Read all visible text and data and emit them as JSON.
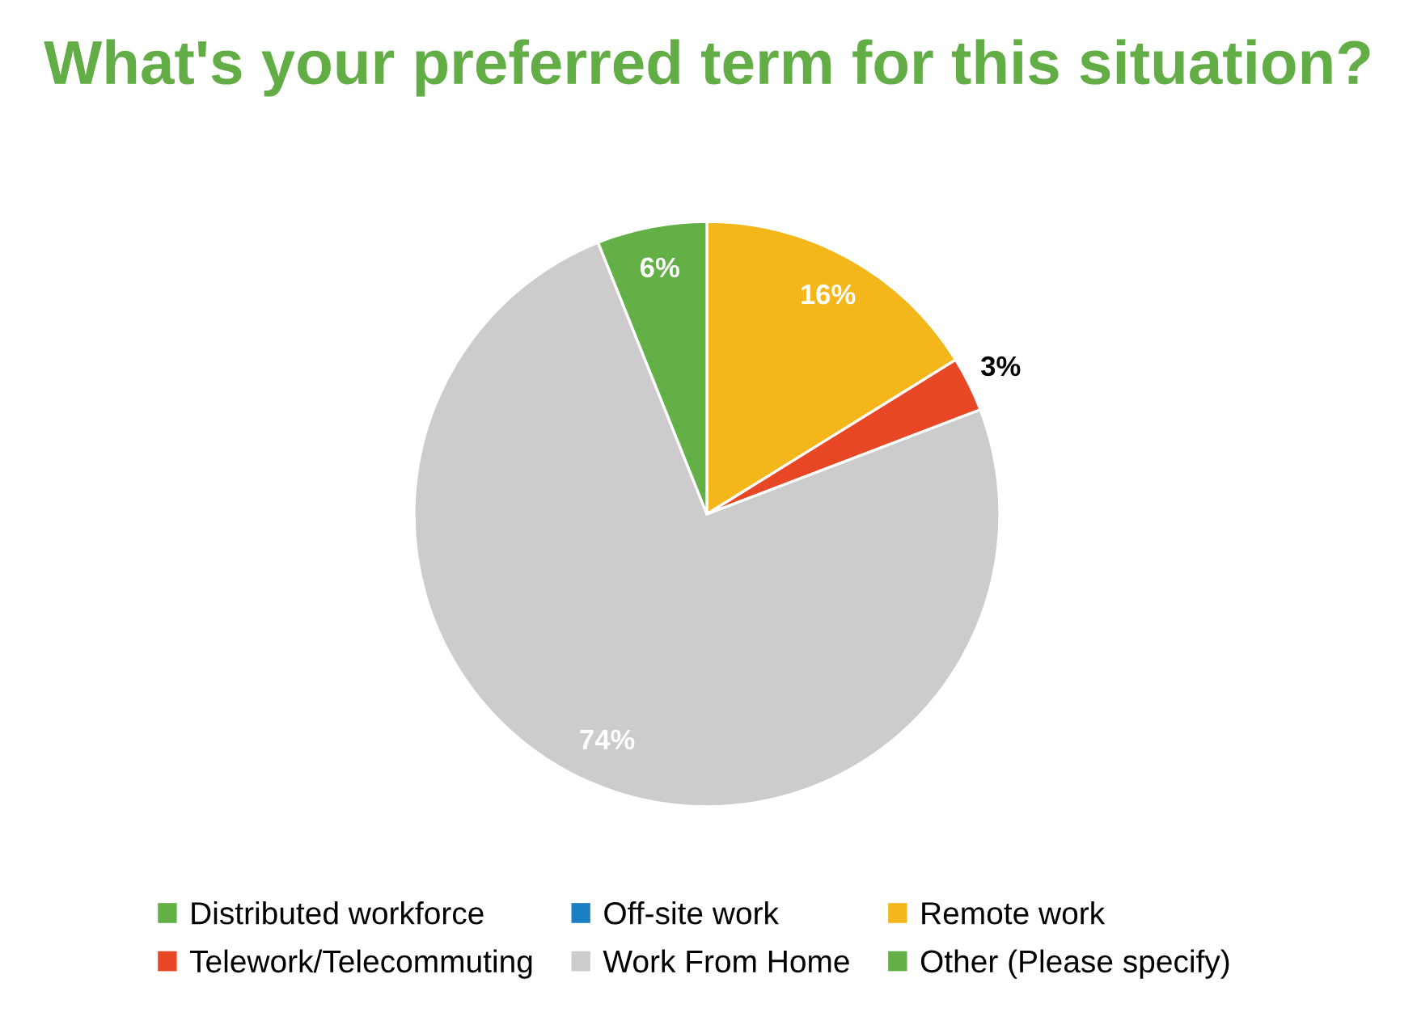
{
  "chart_data": {
    "type": "pie",
    "title": "What's your preferred term for this situation?",
    "categories": [
      "Distributed workforce",
      "Off-site work",
      "Remote work",
      "Telework/Telecommuting",
      "Work From Home",
      "Other (Please specify)"
    ],
    "values": [
      0,
      0,
      16,
      3,
      74,
      6
    ],
    "colors": [
      "#62b046",
      "#1a7fc5",
      "#f3b71c",
      "#e84726",
      "#cccccc",
      "#62b046"
    ],
    "value_labels": [
      null,
      null,
      "16%",
      "3%",
      "74%",
      "6%"
    ],
    "legend": "bottom"
  }
}
